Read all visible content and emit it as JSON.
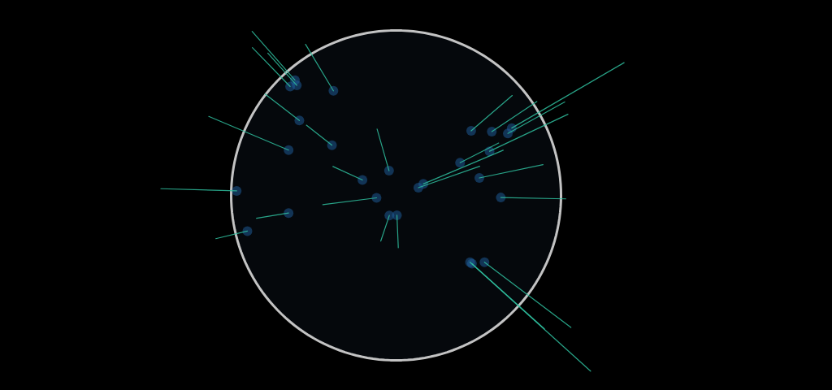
{
  "chart_data": {
    "type": "globe",
    "tick_labels": false,
    "color": "#2fbf9f",
    "lon": [
      77.2,
      72.8,
      88.4,
      90.4,
      80.3,
      77.6,
      67.0,
      116.4,
      121.5,
      113.3,
      106.5,
      139.7,
      135.5,
      127.0,
      106.8,
      112.7,
      107.6,
      121.0,
      0.0,
      2.3,
      37.6,
      29.0,
      7.0,
      3.4,
      31.2,
      38.7,
      15.3,
      51.4
    ],
    "lat": [
      28.6,
      19.0,
      22.5,
      23.7,
      13.1,
      13.0,
      24.9,
      39.9,
      31.2,
      23.1,
      29.6,
      35.7,
      34.7,
      37.5,
      -6.2,
      -7.3,
      -6.9,
      14.6,
      51.5,
      48.9,
      55.7,
      41.0,
      51.0,
      6.5,
      30.0,
      9.0,
      -4.3,
      35.7
    ],
    "values": [
      40,
      50,
      60,
      80,
      30,
      25,
      30,
      50,
      80,
      60,
      40,
      120,
      60,
      50,
      150,
      100,
      90,
      60,
      60,
      50,
      50,
      40,
      40,
      70,
      80,
      30,
      30,
      30
    ]
  }
}
